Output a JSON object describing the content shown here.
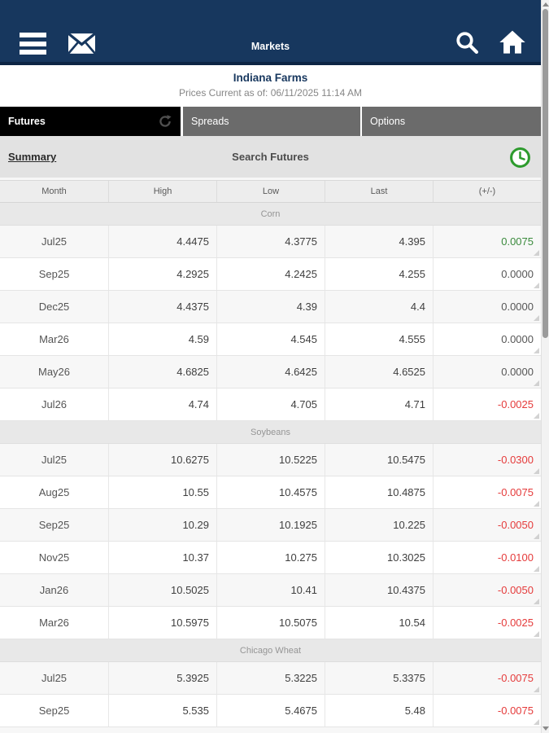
{
  "navbar": {
    "title": "Markets"
  },
  "header": {
    "title": "Indiana Farms",
    "subtitle": "Prices Current as of: 06/11/2025 11:14 AM"
  },
  "tabs": [
    {
      "label": "Futures",
      "active": true
    },
    {
      "label": "Spreads",
      "active": false
    },
    {
      "label": "Options",
      "active": false
    }
  ],
  "subbar": {
    "summary_label": "Summary",
    "center_label": "Search Futures"
  },
  "icons": {
    "navbar": [
      "menu-icon",
      "mail-icon",
      "search-icon",
      "home-icon"
    ],
    "futures_tab": "refresh-icon",
    "subbar_right": "clock-icon"
  },
  "colors": {
    "navbar_navy": "#17375e",
    "active_tab": "#000000",
    "inactive_tab": "#6b6b6b",
    "positive_change": "#3a8a3c",
    "negative_change": "#e53b3b",
    "neutral_change": "#565656",
    "clock_green": "#2d9b2d"
  },
  "table": {
    "columns": [
      "Month",
      "High",
      "Low",
      "Last",
      "(+/-)"
    ],
    "sections": [
      {
        "name": "Corn",
        "rows": [
          {
            "month": "Jul25",
            "high": "4.4475",
            "low": "4.3775",
            "last": "4.395",
            "change": "0.0075",
            "dir": "up"
          },
          {
            "month": "Sep25",
            "high": "4.2925",
            "low": "4.2425",
            "last": "4.255",
            "change": "0.0000",
            "dir": "flat"
          },
          {
            "month": "Dec25",
            "high": "4.4375",
            "low": "4.39",
            "last": "4.4",
            "change": "0.0000",
            "dir": "flat"
          },
          {
            "month": "Mar26",
            "high": "4.59",
            "low": "4.545",
            "last": "4.555",
            "change": "0.0000",
            "dir": "flat"
          },
          {
            "month": "May26",
            "high": "4.6825",
            "low": "4.6425",
            "last": "4.6525",
            "change": "0.0000",
            "dir": "flat"
          },
          {
            "month": "Jul26",
            "high": "4.74",
            "low": "4.705",
            "last": "4.71",
            "change": "-0.0025",
            "dir": "down"
          }
        ]
      },
      {
        "name": "Soybeans",
        "rows": [
          {
            "month": "Jul25",
            "high": "10.6275",
            "low": "10.5225",
            "last": "10.5475",
            "change": "-0.0300",
            "dir": "down"
          },
          {
            "month": "Aug25",
            "high": "10.55",
            "low": "10.4575",
            "last": "10.4875",
            "change": "-0.0075",
            "dir": "down"
          },
          {
            "month": "Sep25",
            "high": "10.29",
            "low": "10.1925",
            "last": "10.225",
            "change": "-0.0050",
            "dir": "down"
          },
          {
            "month": "Nov25",
            "high": "10.37",
            "low": "10.275",
            "last": "10.3025",
            "change": "-0.0100",
            "dir": "down"
          },
          {
            "month": "Jan26",
            "high": "10.5025",
            "low": "10.41",
            "last": "10.4375",
            "change": "-0.0050",
            "dir": "down"
          },
          {
            "month": "Mar26",
            "high": "10.5975",
            "low": "10.5075",
            "last": "10.54",
            "change": "-0.0025",
            "dir": "down"
          }
        ]
      },
      {
        "name": "Chicago Wheat",
        "rows": [
          {
            "month": "Jul25",
            "high": "5.3925",
            "low": "5.3225",
            "last": "5.3375",
            "change": "-0.0075",
            "dir": "down"
          },
          {
            "month": "Sep25",
            "high": "5.535",
            "low": "5.4675",
            "last": "5.48",
            "change": "-0.0075",
            "dir": "down"
          }
        ]
      }
    ]
  }
}
